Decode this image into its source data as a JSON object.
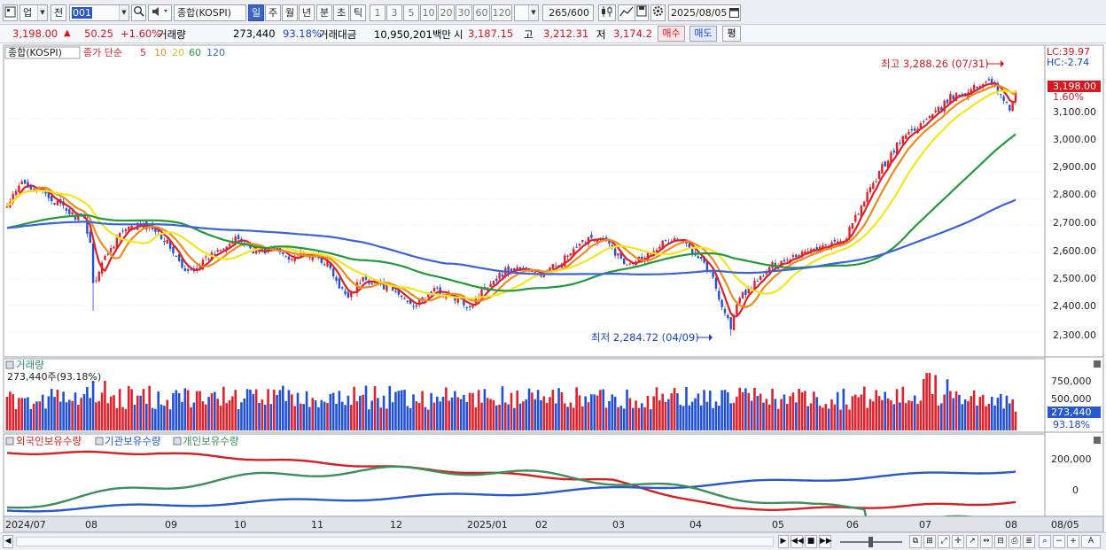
{
  "toolbar": {
    "market_label": "업",
    "prev_label": "전",
    "code_value": "001",
    "index_name": "종합(KOSPI)",
    "periods": [
      "일",
      "주",
      "월",
      "년",
      "분",
      "초",
      "틱"
    ],
    "active_period": "일",
    "intervals": [
      "1",
      "3",
      "5",
      "10",
      "20",
      "30",
      "60",
      "120"
    ],
    "count_value": "265",
    "count_total": "/600",
    "date_value": "2025/08/05"
  },
  "quote": {
    "price": "3,198.00",
    "arrow": "▲",
    "change": "50.25",
    "change_pct": "+1.60%",
    "volume_label": "거래량",
    "volume": "273,440",
    "volume_ratio": "93.18%",
    "amount_label": "거래대금",
    "amount": "10,950,201백만",
    "open_label": "시",
    "open": "3,187.15",
    "high_label": "고",
    "high": "3,212.31",
    "low_label": "저",
    "low": "3,174.2",
    "buy_label": "매수",
    "sell_label": "매도",
    "even_label": "평"
  },
  "price_pane": {
    "title": "종합(KOSPI)",
    "ma_label": "종가 단순",
    "ma_periods": [
      {
        "p": "5",
        "color": "#e0202a"
      },
      {
        "p": "10",
        "color": "#f08a1c"
      },
      {
        "p": "20",
        "color": "#f5e61a"
      },
      {
        "p": "60",
        "color": "#229a3a"
      },
      {
        "p": "120",
        "color": "#3a63d8"
      }
    ],
    "lc": "LC:39.97",
    "hc": "HC:-2.74",
    "high_annotation": "최고 3,288.26 (07/31)",
    "low_annotation": "최저 2,284.72 (04/09)",
    "current_price_tag": "3,198.00",
    "current_pct": "1.60%",
    "y_ticks": [
      "3,100.00",
      "3,000.00",
      "2,900.00",
      "2,800.00",
      "2,700.00",
      "2,600.00",
      "2,500.00",
      "2,400.00",
      "2,300.00"
    ]
  },
  "volume_pane": {
    "title": "거래량",
    "value": "273,440주(93.18%)",
    "y_ticks": [
      "750,000",
      "500,000",
      "250,000"
    ],
    "current_tag": "273,440",
    "current_pct": "93.18%"
  },
  "holdings_pane": {
    "legend": [
      {
        "label": "외국인보유수량",
        "color": "#d62020"
      },
      {
        "label": "기관보유수량",
        "color": "#2858d0"
      },
      {
        "label": "개인보유수량",
        "color": "#3c8f5a"
      }
    ],
    "y_ticks": [
      "200,000",
      "0"
    ]
  },
  "x_axis": [
    "2024/07",
    "08",
    "09",
    "10",
    "11",
    "12",
    "2025/01",
    "02",
    "03",
    "04",
    "05",
    "06",
    "07",
    "08",
    "08/05"
  ],
  "chart_data": {
    "type": "candlestick",
    "ylim": [
      2250,
      3320
    ],
    "close_anchors": [
      [
        0,
        2770
      ],
      [
        5,
        2860
      ],
      [
        10,
        2840
      ],
      [
        16,
        2790
      ],
      [
        22,
        2740
      ],
      [
        26,
        2720
      ],
      [
        28,
        2640
      ],
      [
        29,
        2480
      ],
      [
        32,
        2560
      ],
      [
        38,
        2670
      ],
      [
        44,
        2700
      ],
      [
        50,
        2690
      ],
      [
        55,
        2620
      ],
      [
        60,
        2520
      ],
      [
        66,
        2560
      ],
      [
        72,
        2620
      ],
      [
        78,
        2650
      ],
      [
        84,
        2600
      ],
      [
        90,
        2610
      ],
      [
        96,
        2580
      ],
      [
        102,
        2590
      ],
      [
        108,
        2560
      ],
      [
        112,
        2460
      ],
      [
        115,
        2440
      ],
      [
        120,
        2500
      ],
      [
        126,
        2480
      ],
      [
        132,
        2440
      ],
      [
        138,
        2400
      ],
      [
        144,
        2460
      ],
      [
        150,
        2430
      ],
      [
        156,
        2400
      ],
      [
        162,
        2480
      ],
      [
        168,
        2530
      ],
      [
        174,
        2540
      ],
      [
        180,
        2510
      ],
      [
        186,
        2560
      ],
      [
        192,
        2610
      ],
      [
        196,
        2660
      ],
      [
        202,
        2640
      ],
      [
        208,
        2560
      ],
      [
        214,
        2580
      ],
      [
        220,
        2630
      ],
      [
        226,
        2650
      ],
      [
        230,
        2620
      ],
      [
        234,
        2580
      ],
      [
        238,
        2500
      ],
      [
        241,
        2400
      ],
      [
        244,
        2320
      ],
      [
        247,
        2430
      ],
      [
        252,
        2480
      ],
      [
        258,
        2550
      ],
      [
        264,
        2580
      ],
      [
        270,
        2610
      ],
      [
        276,
        2620
      ],
      [
        282,
        2640
      ],
      [
        288,
        2770
      ],
      [
        294,
        2900
      ],
      [
        298,
        2970
      ],
      [
        302,
        3030
      ],
      [
        308,
        3080
      ],
      [
        313,
        3120
      ],
      [
        318,
        3180
      ],
      [
        323,
        3200
      ],
      [
        327,
        3220
      ],
      [
        331,
        3250
      ],
      [
        333,
        3230
      ],
      [
        336,
        3160
      ],
      [
        338,
        3140
      ],
      [
        340,
        3198
      ]
    ],
    "ma_periods": [
      5,
      10,
      20,
      60,
      120
    ],
    "annotations": {
      "high": {
        "value": 3288.26,
        "date": "07/31"
      },
      "low": {
        "value": 2284.72,
        "date": "04/09"
      }
    },
    "last": {
      "price": 3198.0,
      "change": 50.25,
      "change_pct": 1.6,
      "volume": 273440
    }
  }
}
